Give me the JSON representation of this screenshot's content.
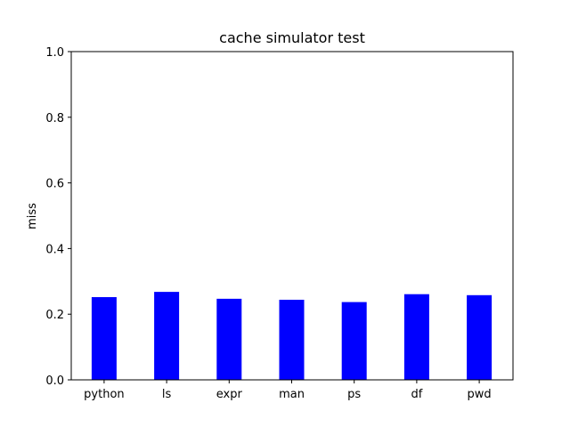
{
  "chart_data": {
    "type": "bar",
    "title": "cache simulator test",
    "xlabel": "",
    "ylabel": "miss",
    "categories": [
      "python",
      "ls",
      "expr",
      "man",
      "ps",
      "df",
      "pwd"
    ],
    "values": [
      0.252,
      0.268,
      0.247,
      0.244,
      0.237,
      0.261,
      0.258
    ],
    "ylim": [
      0,
      1.0
    ],
    "yticks": [
      "0.0",
      "0.2",
      "0.4",
      "0.6",
      "0.8",
      "1.0"
    ],
    "bar_color": "#0000ff",
    "grid": false,
    "legend": "none"
  }
}
